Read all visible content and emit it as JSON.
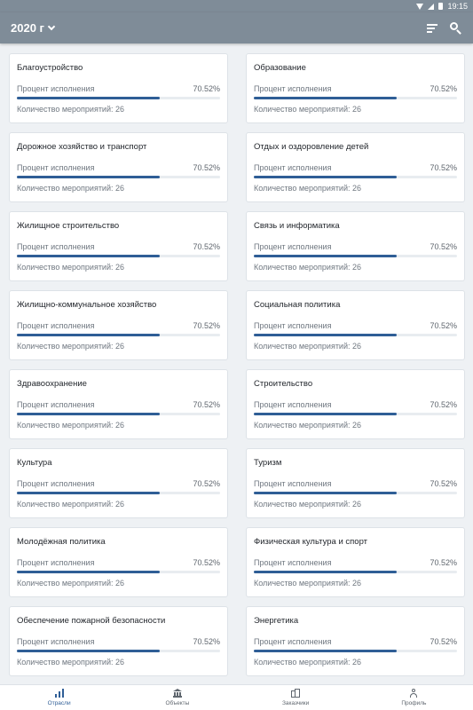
{
  "status_bar": {
    "time": "19:15"
  },
  "app_bar": {
    "year_label": "2020 г"
  },
  "cards": [
    {
      "title": "Благоустройство",
      "percent_label": "Процент исполнения",
      "percent_value": "70.52%",
      "progress": 0.7052,
      "count_label": "Количество мероприятий: 26"
    },
    {
      "title": "Образование",
      "percent_label": "Процент исполнения",
      "percent_value": "70.52%",
      "progress": 0.7052,
      "count_label": "Количество мероприятий: 26"
    },
    {
      "title": "Дорожное хозяйство и транспорт",
      "percent_label": "Процент исполнения",
      "percent_value": "70.52%",
      "progress": 0.7052,
      "count_label": "Количество мероприятий: 26"
    },
    {
      "title": "Отдых и оздоровление детей",
      "percent_label": "Процент исполнения",
      "percent_value": "70.52%",
      "progress": 0.7052,
      "count_label": "Количество мероприятий: 26"
    },
    {
      "title": "Жилищное строительство",
      "percent_label": "Процент исполнения",
      "percent_value": "70.52%",
      "progress": 0.7052,
      "count_label": "Количество мероприятий: 26"
    },
    {
      "title": "Связь и информатика",
      "percent_label": "Процент исполнения",
      "percent_value": "70.52%",
      "progress": 0.7052,
      "count_label": "Количество мероприятий: 26"
    },
    {
      "title": "Жилищно-коммунальное хозяйство",
      "percent_label": "Процент исполнения",
      "percent_value": "70.52%",
      "progress": 0.7052,
      "count_label": "Количество мероприятий: 26"
    },
    {
      "title": "Социальная политика",
      "percent_label": "Процент исполнения",
      "percent_value": "70.52%",
      "progress": 0.7052,
      "count_label": "Количество мероприятий: 26"
    },
    {
      "title": "Здравоохранение",
      "percent_label": "Процент исполнения",
      "percent_value": "70.52%",
      "progress": 0.7052,
      "count_label": "Количество мероприятий: 26"
    },
    {
      "title": "Строительство",
      "percent_label": "Процент исполнения",
      "percent_value": "70.52%",
      "progress": 0.7052,
      "count_label": "Количество мероприятий: 26"
    },
    {
      "title": "Культура",
      "percent_label": "Процент исполнения",
      "percent_value": "70.52%",
      "progress": 0.7052,
      "count_label": "Количество мероприятий: 26"
    },
    {
      "title": "Туризм",
      "percent_label": "Процент исполнения",
      "percent_value": "70.52%",
      "progress": 0.7052,
      "count_label": "Количество мероприятий: 26"
    },
    {
      "title": "Молодёжная политика",
      "percent_label": "Процент исполнения",
      "percent_value": "70.52%",
      "progress": 0.7052,
      "count_label": "Количество мероприятий: 26"
    },
    {
      "title": "Физическая культура и спорт",
      "percent_label": "Процент исполнения",
      "percent_value": "70.52%",
      "progress": 0.7052,
      "count_label": "Количество мероприятий: 26"
    },
    {
      "title": "Обеспечение пожарной безопасности",
      "percent_label": "Процент исполнения",
      "percent_value": "70.52%",
      "progress": 0.7052,
      "count_label": "Количество мероприятий: 26"
    },
    {
      "title": "Энергетика",
      "percent_label": "Процент исполнения",
      "percent_value": "70.52%",
      "progress": 0.7052,
      "count_label": "Количество мероприятий: 26"
    }
  ],
  "bottom_nav": [
    {
      "label": "Отрасли",
      "icon": "bar-chart-icon",
      "active": true
    },
    {
      "label": "Объекты",
      "icon": "bank-icon",
      "active": false
    },
    {
      "label": "Заказчики",
      "icon": "building-icon",
      "active": false
    },
    {
      "label": "Профиль",
      "icon": "person-icon",
      "active": false
    }
  ],
  "colors": {
    "app_bar": "#7f8c98",
    "accent": "#2f5e96",
    "background": "#eef1f4"
  }
}
